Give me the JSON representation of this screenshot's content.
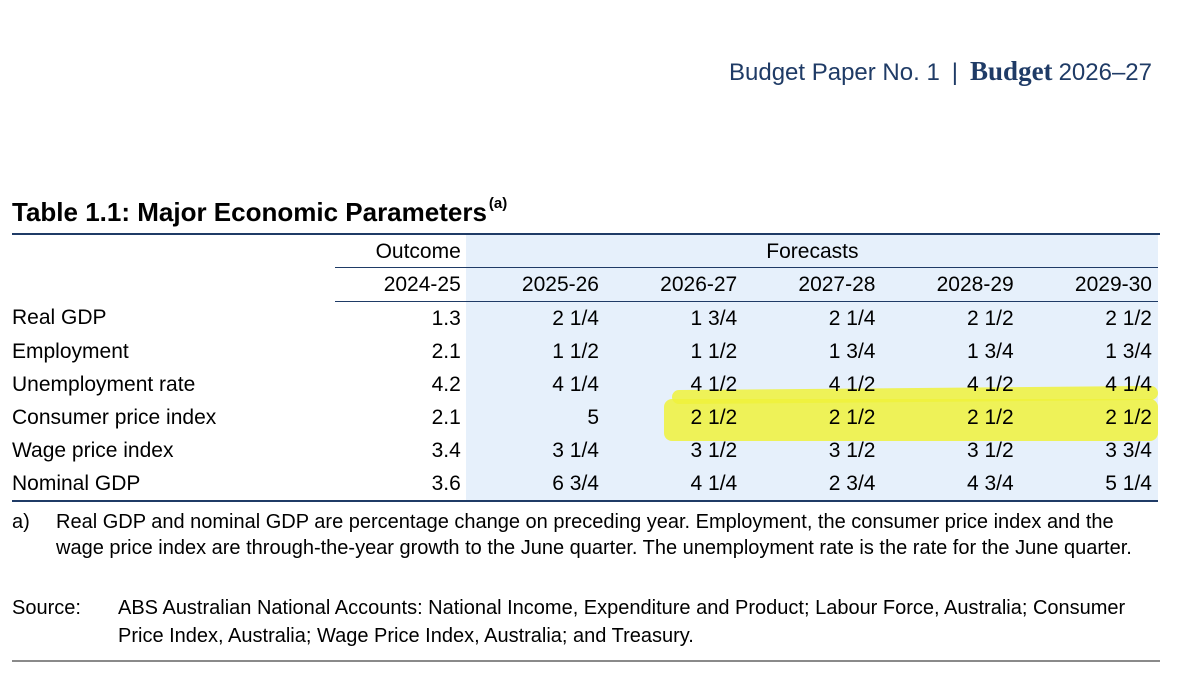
{
  "header": {
    "paper": "Budget Paper No. 1",
    "separator": "|",
    "brand": "Budget",
    "year": "2026–27"
  },
  "table": {
    "title": "Table 1.1: Major Economic Parameters",
    "title_note": "(a)",
    "group_outcome": "Outcome",
    "group_forecasts": "Forecasts",
    "years": [
      "2024-25",
      "2025-26",
      "2026-27",
      "2027-28",
      "2028-29",
      "2029-30"
    ],
    "rows": [
      {
        "label": "Real GDP",
        "values": [
          "1.3",
          "2 1/4",
          "1 3/4",
          "2 1/4",
          "2 1/2",
          "2 1/2"
        ]
      },
      {
        "label": "Employment",
        "values": [
          "2.1",
          "1 1/2",
          "1 1/2",
          "1 3/4",
          "1 3/4",
          "1 3/4"
        ]
      },
      {
        "label": "Unemployment rate",
        "values": [
          "4.2",
          "4 1/4",
          "4 1/2",
          "4 1/2",
          "4 1/2",
          "4 1/4"
        ]
      },
      {
        "label": "Consumer price index",
        "values": [
          "2.1",
          "5",
          "2 1/2",
          "2 1/2",
          "2 1/2",
          "2 1/2"
        ]
      },
      {
        "label": "Wage price index",
        "values": [
          "3.4",
          "3 1/4",
          "3 1/2",
          "3 1/2",
          "3 1/2",
          "3 3/4"
        ]
      },
      {
        "label": "Nominal GDP",
        "values": [
          "3.6",
          "6 3/4",
          "4 1/4",
          "2 3/4",
          "4 3/4",
          "5 1/4"
        ]
      }
    ],
    "highlight_color": "#eef23b"
  },
  "notes": {
    "a_marker": "a)",
    "a_text": "Real GDP and nominal GDP are percentage change on preceding year. Employment, the consumer price index and the wage price index are through-the-year growth to the June quarter. The unemployment rate is the rate for the June quarter.",
    "source_marker": "Source:",
    "source_text": "ABS Australian National Accounts: National Income, Expenditure and Product; Labour Force, Australia; Consumer Price Index, Australia; Wage Price Index, Australia; and Treasury."
  },
  "colors": {
    "navy": "#1f3b66",
    "forecast_band": "#e6f0fb"
  }
}
